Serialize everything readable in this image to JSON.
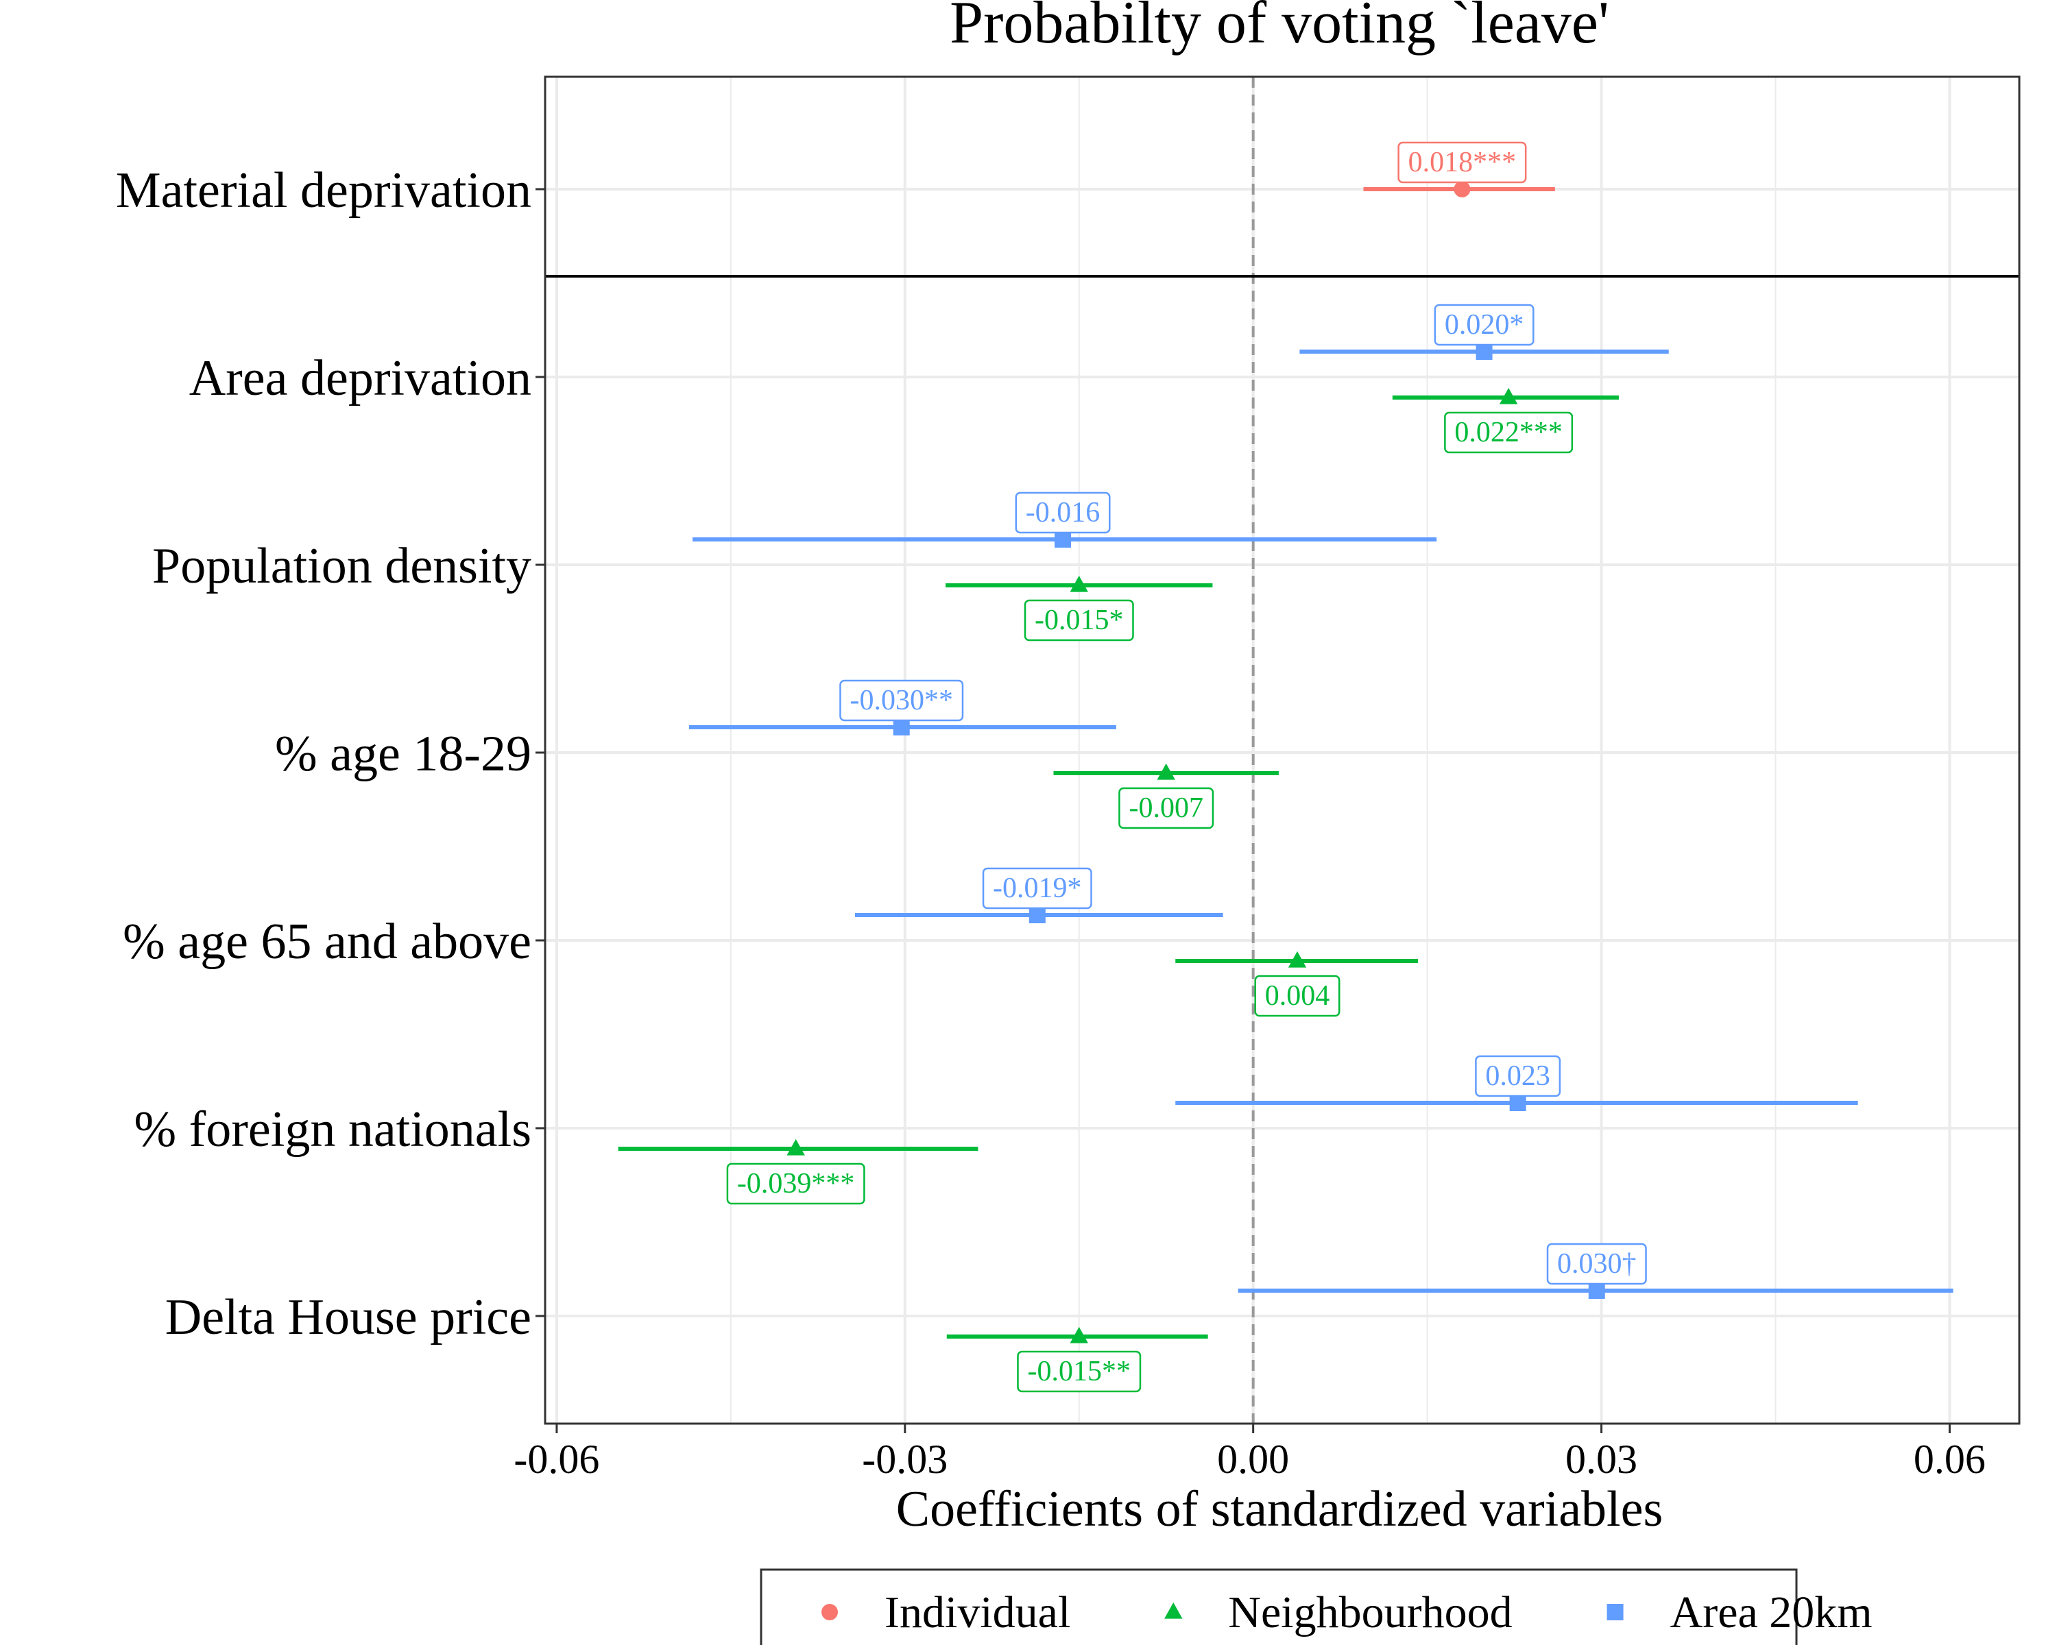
{
  "chart_data": {
    "type": "scatter",
    "subtype": "coefficient-plot",
    "title": "Probabilty of voting `leave'",
    "xlabel": "Coefficients of standardized variables",
    "ylabel": "",
    "xlim": [
      -0.061,
      0.066
    ],
    "x_ticks": [
      -0.06,
      -0.03,
      0.0,
      0.03,
      0.06
    ],
    "x_tick_labels": [
      "-0.06",
      "-0.03",
      "0.00",
      "0.03",
      "0.06"
    ],
    "grid": true,
    "reference_line": 0,
    "legend_position": "bottom",
    "categories": [
      "Material deprivation",
      "Area deprivation",
      "Population density",
      "% age 18-29",
      "% age 65 and above",
      "% foreign nationals",
      "Delta House price"
    ],
    "series": [
      {
        "name": "Individual",
        "color": "#F8766D",
        "marker": "circle",
        "points": [
          {
            "category": "Material deprivation",
            "estimate": 0.018,
            "ci_low": 0.0095,
            "ci_high": 0.026,
            "label": "0.018***"
          }
        ]
      },
      {
        "name": "Neighbourhood",
        "color": "#00BA38",
        "marker": "triangle",
        "points": [
          {
            "category": "Area deprivation",
            "estimate": 0.022,
            "ci_low": 0.012,
            "ci_high": 0.0315,
            "label": "0.022***"
          },
          {
            "category": "Population density",
            "estimate": -0.015,
            "ci_low": -0.0265,
            "ci_high": -0.0035,
            "label": "-0.015*"
          },
          {
            "category": "% age 18-29",
            "estimate": -0.0075,
            "ci_low": -0.0172,
            "ci_high": 0.0022,
            "label": "-0.007"
          },
          {
            "category": "% age 65 and above",
            "estimate": 0.0038,
            "ci_low": -0.0067,
            "ci_high": 0.0142,
            "label": "0.004"
          },
          {
            "category": "% foreign nationals",
            "estimate": -0.0394,
            "ci_low": -0.0547,
            "ci_high": -0.0237,
            "label": "-0.039***"
          },
          {
            "category": "Delta House price",
            "estimate": -0.015,
            "ci_low": -0.0264,
            "ci_high": -0.0039,
            "label": "-0.015**"
          }
        ]
      },
      {
        "name": "Area 20km",
        "color": "#619CFF",
        "marker": "square",
        "points": [
          {
            "category": "Area deprivation",
            "estimate": 0.0199,
            "ci_low": 0.004,
            "ci_high": 0.0358,
            "label": "0.020*"
          },
          {
            "category": "Population density",
            "estimate": -0.0164,
            "ci_low": -0.0483,
            "ci_high": 0.0158,
            "label": "-0.016"
          },
          {
            "category": "% age 18-29",
            "estimate": -0.0303,
            "ci_low": -0.0486,
            "ci_high": -0.0118,
            "label": "-0.030**"
          },
          {
            "category": "% age 65 and above",
            "estimate": -0.0186,
            "ci_low": -0.0343,
            "ci_high": -0.0026,
            "label": "-0.019*"
          },
          {
            "category": "% foreign nationals",
            "estimate": 0.0228,
            "ci_low": -0.0067,
            "ci_high": 0.0521,
            "label": "0.023"
          },
          {
            "category": "Delta House price",
            "estimate": 0.0296,
            "ci_low": -0.0013,
            "ci_high": 0.0603,
            "label": "0.030†"
          }
        ]
      }
    ],
    "separator_after_category": "Material deprivation"
  }
}
